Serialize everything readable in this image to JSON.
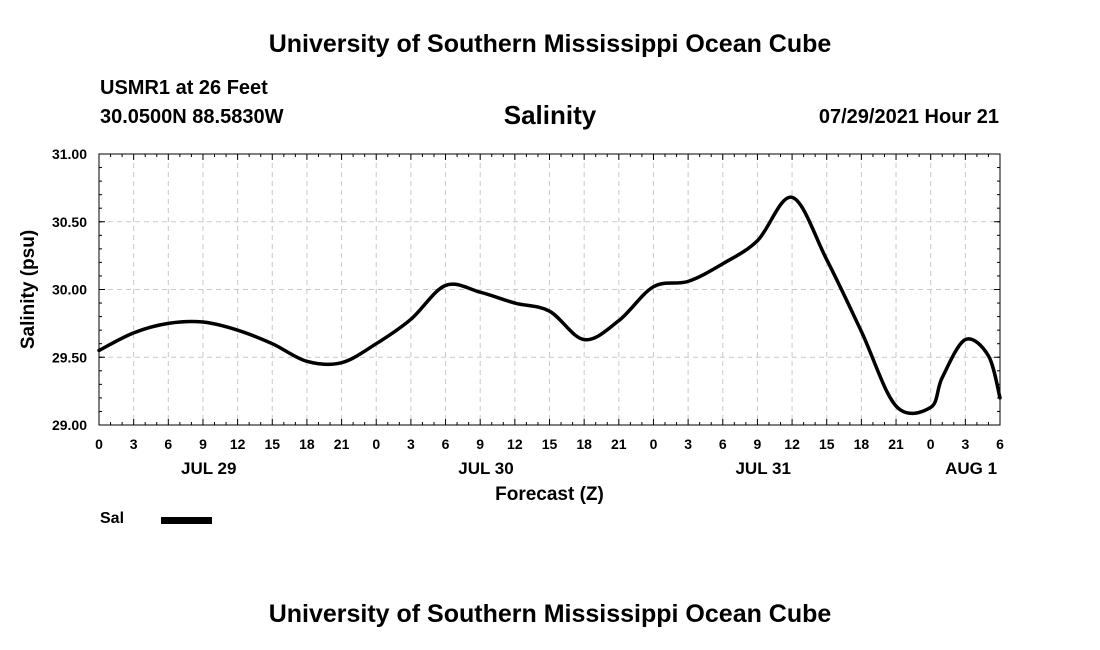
{
  "header": {
    "title": "University of Southern Mississippi Ocean Cube",
    "station": "USMR1 at 26 Feet",
    "coordinates": "30.0500N  88.5830W",
    "chart_title": "Salinity",
    "timestamp": "07/29/2021 Hour 21"
  },
  "footer": {
    "title": "University of Southern Mississippi Ocean Cube"
  },
  "chart_data": {
    "type": "line",
    "title": "Salinity",
    "xlabel": "Forecast (Z)",
    "ylabel": "Salinity (psu)",
    "x_unit": "hours since JUL 29 00Z",
    "xlim": [
      0,
      78
    ],
    "ylim": [
      29.0,
      31.0
    ],
    "y_ticks": [
      29.0,
      29.5,
      30.0,
      30.5,
      31.0
    ],
    "y_tick_labels": [
      "29.00",
      "29.50",
      "30.00",
      "30.50",
      "31.00"
    ],
    "x_ticks": [
      0,
      3,
      6,
      9,
      12,
      15,
      18,
      21,
      24,
      27,
      30,
      33,
      36,
      39,
      42,
      45,
      48,
      51,
      54,
      57,
      60,
      63,
      66,
      69,
      72,
      75,
      78
    ],
    "x_tick_labels": [
      "0",
      "3",
      "6",
      "9",
      "12",
      "15",
      "18",
      "21",
      "0",
      "3",
      "6",
      "9",
      "12",
      "15",
      "18",
      "21",
      "0",
      "3",
      "6",
      "9",
      "12",
      "15",
      "18",
      "21",
      "0",
      "3",
      "6"
    ],
    "day_labels": [
      {
        "label": "JUL 29",
        "x": 9.5
      },
      {
        "label": "JUL 30",
        "x": 33.5
      },
      {
        "label": "JUL 31",
        "x": 57.5
      },
      {
        "label": "AUG 1",
        "x": 75.5
      }
    ],
    "grid": true,
    "legend": {
      "position": "bottom-left"
    },
    "series": [
      {
        "name": "Sal",
        "color": "#000000",
        "x": [
          0,
          3,
          6,
          9,
          12,
          15,
          18,
          21,
          24,
          27,
          30,
          33,
          36,
          39,
          42,
          45,
          48,
          51,
          54,
          57,
          60,
          63,
          66,
          69,
          72,
          73,
          75,
          77,
          78
        ],
        "y": [
          29.55,
          29.68,
          29.75,
          29.76,
          29.7,
          29.6,
          29.47,
          29.46,
          29.6,
          29.78,
          30.03,
          29.98,
          29.9,
          29.84,
          29.63,
          29.77,
          30.02,
          30.06,
          30.19,
          30.36,
          30.68,
          30.22,
          29.69,
          29.14,
          29.13,
          29.35,
          29.63,
          29.51,
          29.2
        ]
      }
    ]
  }
}
